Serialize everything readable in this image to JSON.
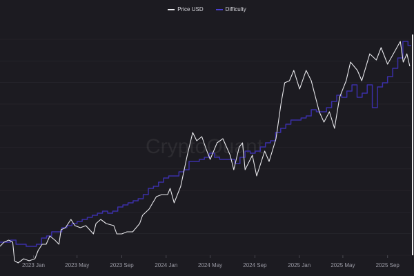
{
  "chart_data": {
    "type": "line",
    "title": "",
    "xlabel": "",
    "ylabel": "",
    "watermark": "CryptoQuant",
    "x_ticks": [
      "2023 Jan",
      "2023 May",
      "2023 Sep",
      "2024 Jan",
      "2024 May",
      "2024 Sep",
      "2025 Jan",
      "2025 May",
      "2025 Sep"
    ],
    "x_range": [
      "2022-10-01",
      "2025-11-05"
    ],
    "grid": true,
    "legend_position": "top-center",
    "background_color": "#1c1b21",
    "grid_color": "#2a2930",
    "series": [
      {
        "name": "Price USD",
        "color": "#e8e8ec",
        "scale": "relative",
        "points": [
          [
            "2022-10-01",
            0.21
          ],
          [
            "2022-10-12",
            0.23
          ],
          [
            "2022-10-25",
            0.24
          ],
          [
            "2022-11-05",
            0.23
          ],
          [
            "2022-11-10",
            0.14
          ],
          [
            "2022-11-20",
            0.13
          ],
          [
            "2022-12-05",
            0.15
          ],
          [
            "2022-12-20",
            0.14
          ],
          [
            "2023-01-05",
            0.15
          ],
          [
            "2023-01-14",
            0.19
          ],
          [
            "2023-01-25",
            0.22
          ],
          [
            "2023-02-05",
            0.22
          ],
          [
            "2023-02-15",
            0.26
          ],
          [
            "2023-03-01",
            0.24
          ],
          [
            "2023-03-12",
            0.22
          ],
          [
            "2023-03-18",
            0.29
          ],
          [
            "2023-03-30",
            0.3
          ],
          [
            "2023-04-14",
            0.34
          ],
          [
            "2023-04-25",
            0.31
          ],
          [
            "2023-05-10",
            0.3
          ],
          [
            "2023-05-25",
            0.31
          ],
          [
            "2023-06-15",
            0.27
          ],
          [
            "2023-06-22",
            0.32
          ],
          [
            "2023-07-05",
            0.34
          ],
          [
            "2023-07-20",
            0.32
          ],
          [
            "2023-08-10",
            0.31
          ],
          [
            "2023-08-18",
            0.27
          ],
          [
            "2023-09-01",
            0.27
          ],
          [
            "2023-09-15",
            0.28
          ],
          [
            "2023-10-01",
            0.28
          ],
          [
            "2023-10-20",
            0.32
          ],
          [
            "2023-10-28",
            0.36
          ],
          [
            "2023-11-15",
            0.39
          ],
          [
            "2023-12-05",
            0.45
          ],
          [
            "2023-12-20",
            0.46
          ],
          [
            "2024-01-05",
            0.46
          ],
          [
            "2024-01-12",
            0.49
          ],
          [
            "2024-01-23",
            0.42
          ],
          [
            "2024-02-10",
            0.5
          ],
          [
            "2024-02-28",
            0.65
          ],
          [
            "2024-03-14",
            0.76
          ],
          [
            "2024-03-25",
            0.72
          ],
          [
            "2024-04-08",
            0.74
          ],
          [
            "2024-04-20",
            0.68
          ],
          [
            "2024-05-01",
            0.63
          ],
          [
            "2024-05-20",
            0.71
          ],
          [
            "2024-06-05",
            0.73
          ],
          [
            "2024-06-25",
            0.65
          ],
          [
            "2024-07-05",
            0.58
          ],
          [
            "2024-07-20",
            0.69
          ],
          [
            "2024-07-29",
            0.71
          ],
          [
            "2024-08-05",
            0.58
          ],
          [
            "2024-08-25",
            0.65
          ],
          [
            "2024-09-06",
            0.55
          ],
          [
            "2024-09-28",
            0.67
          ],
          [
            "2024-10-10",
            0.62
          ],
          [
            "2024-10-29",
            0.73
          ],
          [
            "2024-11-12",
            0.9
          ],
          [
            "2024-11-22",
            1.0
          ],
          [
            "2024-12-05",
            1.01
          ],
          [
            "2024-12-17",
            1.06
          ],
          [
            "2025-01-02",
            0.97
          ],
          [
            "2025-01-20",
            1.06
          ],
          [
            "2025-02-03",
            1.01
          ],
          [
            "2025-02-25",
            0.86
          ],
          [
            "2025-03-10",
            0.81
          ],
          [
            "2025-03-25",
            0.86
          ],
          [
            "2025-04-08",
            0.78
          ],
          [
            "2025-04-22",
            0.93
          ],
          [
            "2025-05-10",
            1.01
          ],
          [
            "2025-05-22",
            1.1
          ],
          [
            "2025-06-10",
            1.06
          ],
          [
            "2025-06-22",
            1.01
          ],
          [
            "2025-07-14",
            1.14
          ],
          [
            "2025-08-01",
            1.11
          ],
          [
            "2025-08-14",
            1.17
          ],
          [
            "2025-09-01",
            1.09
          ],
          [
            "2025-09-20",
            1.15
          ],
          [
            "2025-10-06",
            1.2
          ],
          [
            "2025-10-14",
            1.1
          ],
          [
            "2025-10-24",
            1.14
          ],
          [
            "2025-11-01",
            1.08
          ]
        ]
      },
      {
        "name": "Difficulty",
        "color": "#3b2fa8",
        "scale": "relative",
        "points": [
          [
            "2022-10-01",
            0.23
          ],
          [
            "2022-10-15",
            0.23
          ],
          [
            "2022-10-30",
            0.24
          ],
          [
            "2022-11-14",
            0.22
          ],
          [
            "2022-11-28",
            0.22
          ],
          [
            "2022-12-12",
            0.21
          ],
          [
            "2022-12-26",
            0.21
          ],
          [
            "2023-01-09",
            0.22
          ],
          [
            "2023-01-23",
            0.25
          ],
          [
            "2023-02-06",
            0.26
          ],
          [
            "2023-02-20",
            0.28
          ],
          [
            "2023-03-06",
            0.28
          ],
          [
            "2023-03-20",
            0.3
          ],
          [
            "2023-04-03",
            0.31
          ],
          [
            "2023-04-17",
            0.32
          ],
          [
            "2023-05-01",
            0.33
          ],
          [
            "2023-05-15",
            0.34
          ],
          [
            "2023-05-29",
            0.35
          ],
          [
            "2023-06-12",
            0.36
          ],
          [
            "2023-06-26",
            0.37
          ],
          [
            "2023-07-10",
            0.38
          ],
          [
            "2023-07-24",
            0.37
          ],
          [
            "2023-08-07",
            0.38
          ],
          [
            "2023-08-21",
            0.4
          ],
          [
            "2023-09-04",
            0.41
          ],
          [
            "2023-09-18",
            0.42
          ],
          [
            "2023-10-02",
            0.43
          ],
          [
            "2023-10-16",
            0.44
          ],
          [
            "2023-10-30",
            0.46
          ],
          [
            "2023-11-13",
            0.49
          ],
          [
            "2023-11-27",
            0.5
          ],
          [
            "2023-12-11",
            0.52
          ],
          [
            "2023-12-25",
            0.54
          ],
          [
            "2024-01-08",
            0.55
          ],
          [
            "2024-01-22",
            0.55
          ],
          [
            "2024-02-05",
            0.57
          ],
          [
            "2024-02-19",
            0.58
          ],
          [
            "2024-03-04",
            0.62
          ],
          [
            "2024-03-18",
            0.62
          ],
          [
            "2024-04-01",
            0.63
          ],
          [
            "2024-04-15",
            0.64
          ],
          [
            "2024-04-29",
            0.66
          ],
          [
            "2024-05-13",
            0.64
          ],
          [
            "2024-05-27",
            0.63
          ],
          [
            "2024-06-10",
            0.63
          ],
          [
            "2024-06-24",
            0.63
          ],
          [
            "2024-07-08",
            0.61
          ],
          [
            "2024-07-22",
            0.64
          ],
          [
            "2024-08-05",
            0.67
          ],
          [
            "2024-08-19",
            0.66
          ],
          [
            "2024-09-02",
            0.67
          ],
          [
            "2024-09-16",
            0.69
          ],
          [
            "2024-09-30",
            0.71
          ],
          [
            "2024-10-14",
            0.72
          ],
          [
            "2024-10-28",
            0.76
          ],
          [
            "2024-11-11",
            0.78
          ],
          [
            "2024-11-25",
            0.8
          ],
          [
            "2024-12-09",
            0.82
          ],
          [
            "2024-12-23",
            0.82
          ],
          [
            "2025-01-06",
            0.83
          ],
          [
            "2025-01-20",
            0.84
          ],
          [
            "2025-02-03",
            0.87
          ],
          [
            "2025-02-17",
            0.86
          ],
          [
            "2025-03-03",
            0.86
          ],
          [
            "2025-03-17",
            0.88
          ],
          [
            "2025-03-31",
            0.91
          ],
          [
            "2025-04-14",
            0.94
          ],
          [
            "2025-04-28",
            0.93
          ],
          [
            "2025-05-12",
            0.96
          ],
          [
            "2025-05-26",
            0.99
          ],
          [
            "2025-06-09",
            0.93
          ],
          [
            "2025-06-23",
            0.95
          ],
          [
            "2025-07-07",
            0.99
          ],
          [
            "2025-07-21",
            0.88
          ],
          [
            "2025-08-04",
            0.98
          ],
          [
            "2025-08-18",
            1.0
          ],
          [
            "2025-09-01",
            1.03
          ],
          [
            "2025-09-15",
            1.07
          ],
          [
            "2025-09-29",
            1.12
          ],
          [
            "2025-10-13",
            1.2
          ],
          [
            "2025-10-27",
            1.18
          ],
          [
            "2025-11-05",
            1.18
          ]
        ]
      }
    ]
  }
}
